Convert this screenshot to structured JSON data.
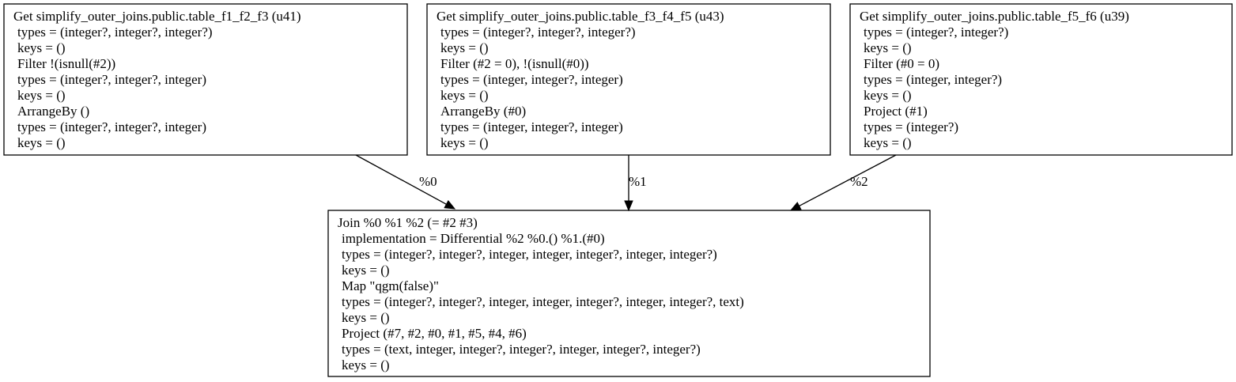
{
  "nodes": [
    {
      "lines": [
        "Get simplify_outer_joins.public.table_f1_f2_f3 (u41)",
        "types = (integer?, integer?, integer?)",
        "keys = ()",
        "Filter !(isnull(#2))",
        "types = (integer?, integer?, integer)",
        "keys = ()",
        "ArrangeBy ()",
        "types = (integer?, integer?, integer)",
        "keys = ()"
      ]
    },
    {
      "lines": [
        "Get simplify_outer_joins.public.table_f3_f4_f5 (u43)",
        "types = (integer?, integer?, integer?)",
        "keys = ()",
        "Filter (#2 = 0), !(isnull(#0))",
        "types = (integer, integer?, integer)",
        "keys = ()",
        "ArrangeBy (#0)",
        "types = (integer, integer?, integer)",
        "keys = ()"
      ]
    },
    {
      "lines": [
        "Get simplify_outer_joins.public.table_f5_f6 (u39)",
        "types = (integer?, integer?)",
        "keys = ()",
        "Filter (#0 = 0)",
        "types = (integer, integer?)",
        "keys = ()",
        "Project (#1)",
        "types = (integer?)",
        "keys = ()"
      ]
    },
    {
      "lines": [
        "Join %0 %1 %2 (= #2 #3)",
        "implementation = Differential %2 %0.() %1.(#0)",
        "types = (integer?, integer?, integer, integer, integer?, integer, integer?)",
        "keys = ()",
        "Map \"qgm(false)\"",
        "types = (integer?, integer?, integer, integer, integer?, integer, integer?, text)",
        "keys = ()",
        "Project (#7, #2, #0, #1, #5, #4, #6)",
        "types = (text, integer, integer?, integer?, integer, integer?, integer?)",
        "keys = ()"
      ]
    }
  ],
  "edges": [
    {
      "label": "%0"
    },
    {
      "label": "%1"
    },
    {
      "label": "%2"
    }
  ]
}
